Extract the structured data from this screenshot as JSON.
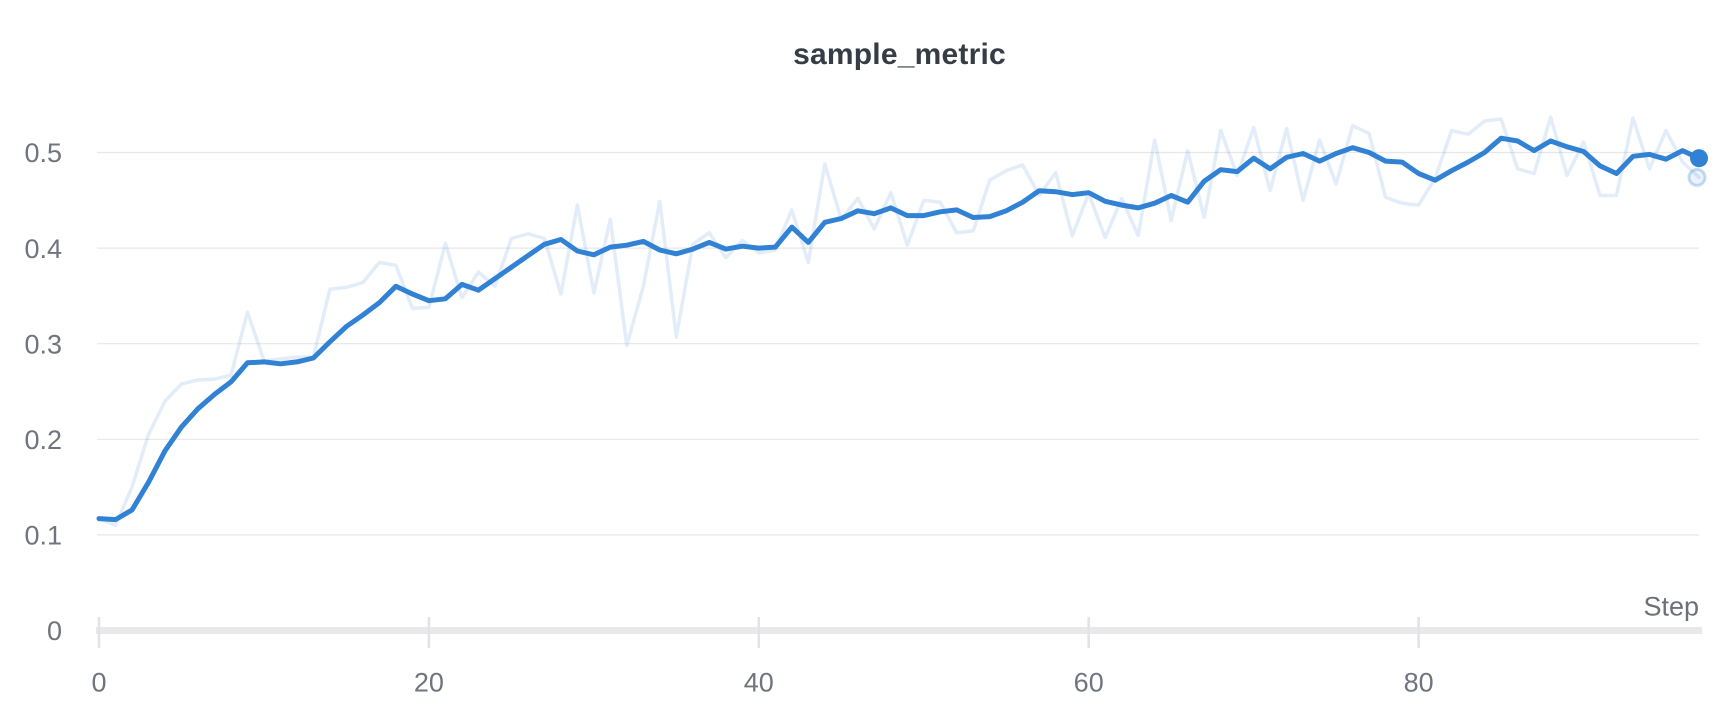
{
  "header": {
    "title": "sample_metric"
  },
  "axes": {
    "x_axis_title": "Step",
    "x_tick_labels": [
      "0",
      "20",
      "40",
      "60",
      "80"
    ],
    "y_tick_labels": [
      "0",
      "0.1",
      "0.2",
      "0.3",
      "0.4",
      "0.5"
    ]
  },
  "colors": {
    "line": "#3182d4",
    "raw_line_opacity": 0.14,
    "gridline": "#e7e7ea",
    "axis_line": "#e9e9ec",
    "tick_mark": "#e2e2e7",
    "title_text": "#363c46",
    "tick_text": "#70747e",
    "background": "#ffffff"
  },
  "chart_data": {
    "type": "line",
    "title": "sample_metric",
    "xlabel": "Step",
    "ylabel": "",
    "xlim": [
      0,
      97
    ],
    "ylim": [
      0,
      0.552
    ],
    "x_ticks": [
      0,
      20,
      40,
      60,
      80
    ],
    "y_ticks": [
      0,
      0.1,
      0.2,
      0.3,
      0.4,
      0.5
    ],
    "grid": "horizontal",
    "legend": "none",
    "end_markers": true,
    "x": [
      0,
      1,
      2,
      3,
      4,
      5,
      6,
      7,
      8,
      9,
      10,
      11,
      12,
      13,
      14,
      15,
      16,
      17,
      18,
      19,
      20,
      21,
      22,
      23,
      24,
      25,
      26,
      27,
      28,
      29,
      30,
      31,
      32,
      33,
      34,
      35,
      36,
      37,
      38,
      39,
      40,
      41,
      42,
      43,
      44,
      45,
      46,
      47,
      48,
      49,
      50,
      51,
      52,
      53,
      54,
      55,
      56,
      57,
      58,
      59,
      60,
      61,
      62,
      63,
      64,
      65,
      66,
      67,
      68,
      69,
      70,
      71,
      72,
      73,
      74,
      75,
      76,
      77,
      78,
      79,
      80,
      81,
      82,
      83,
      84,
      85,
      86,
      87,
      88,
      89,
      90,
      91,
      92,
      93,
      94,
      95,
      96,
      97
    ],
    "series": [
      {
        "name": "sample_metric (raw)",
        "role": "raw",
        "color": "#3182d4",
        "opacity": 0.14,
        "stroke_width": 3.5,
        "values": [
          0.117,
          0.11,
          0.15,
          0.205,
          0.24,
          0.258,
          0.262,
          0.263,
          0.267,
          0.333,
          0.282,
          0.284,
          0.286,
          0.286,
          0.357,
          0.359,
          0.364,
          0.385,
          0.382,
          0.337,
          0.338,
          0.405,
          0.348,
          0.375,
          0.36,
          0.41,
          0.415,
          0.41,
          0.352,
          0.445,
          0.353,
          0.43,
          0.298,
          0.36,
          0.449,
          0.307,
          0.404,
          0.416,
          0.39,
          0.408,
          0.395,
          0.398,
          0.44,
          0.385,
          0.488,
          0.43,
          0.452,
          0.42,
          0.458,
          0.403,
          0.45,
          0.448,
          0.416,
          0.418,
          0.471,
          0.481,
          0.487,
          0.455,
          0.479,
          0.413,
          0.457,
          0.411,
          0.452,
          0.413,
          0.513,
          0.429,
          0.502,
          0.432,
          0.523,
          0.476,
          0.526,
          0.46,
          0.525,
          0.45,
          0.513,
          0.467,
          0.528,
          0.52,
          0.453,
          0.447,
          0.445,
          0.473,
          0.523,
          0.519,
          0.533,
          0.535,
          0.483,
          0.478,
          0.537,
          0.476,
          0.511,
          0.455,
          0.455,
          0.536,
          0.483,
          0.523,
          0.49,
          0.474
        ]
      },
      {
        "name": "sample_metric (smoothed)",
        "role": "smoothed",
        "color": "#3182d4",
        "opacity": 1,
        "stroke_width": 5,
        "values": [
          0.117,
          0.116,
          0.126,
          0.155,
          0.188,
          0.213,
          0.232,
          0.247,
          0.26,
          0.28,
          0.281,
          0.279,
          0.281,
          0.285,
          0.302,
          0.318,
          0.33,
          0.343,
          0.36,
          0.352,
          0.345,
          0.347,
          0.362,
          0.356,
          0.368,
          0.38,
          0.392,
          0.404,
          0.409,
          0.397,
          0.393,
          0.401,
          0.403,
          0.407,
          0.398,
          0.394,
          0.399,
          0.406,
          0.399,
          0.402,
          0.4,
          0.401,
          0.422,
          0.406,
          0.427,
          0.431,
          0.439,
          0.436,
          0.442,
          0.434,
          0.434,
          0.438,
          0.44,
          0.432,
          0.433,
          0.439,
          0.448,
          0.46,
          0.459,
          0.456,
          0.458,
          0.449,
          0.445,
          0.442,
          0.447,
          0.455,
          0.448,
          0.47,
          0.482,
          0.48,
          0.494,
          0.483,
          0.495,
          0.499,
          0.491,
          0.499,
          0.505,
          0.5,
          0.491,
          0.49,
          0.478,
          0.471,
          0.481,
          0.49,
          0.5,
          0.515,
          0.512,
          0.502,
          0.512,
          0.506,
          0.501,
          0.486,
          0.478,
          0.496,
          0.498,
          0.493,
          0.502,
          0.494
        ]
      }
    ]
  }
}
